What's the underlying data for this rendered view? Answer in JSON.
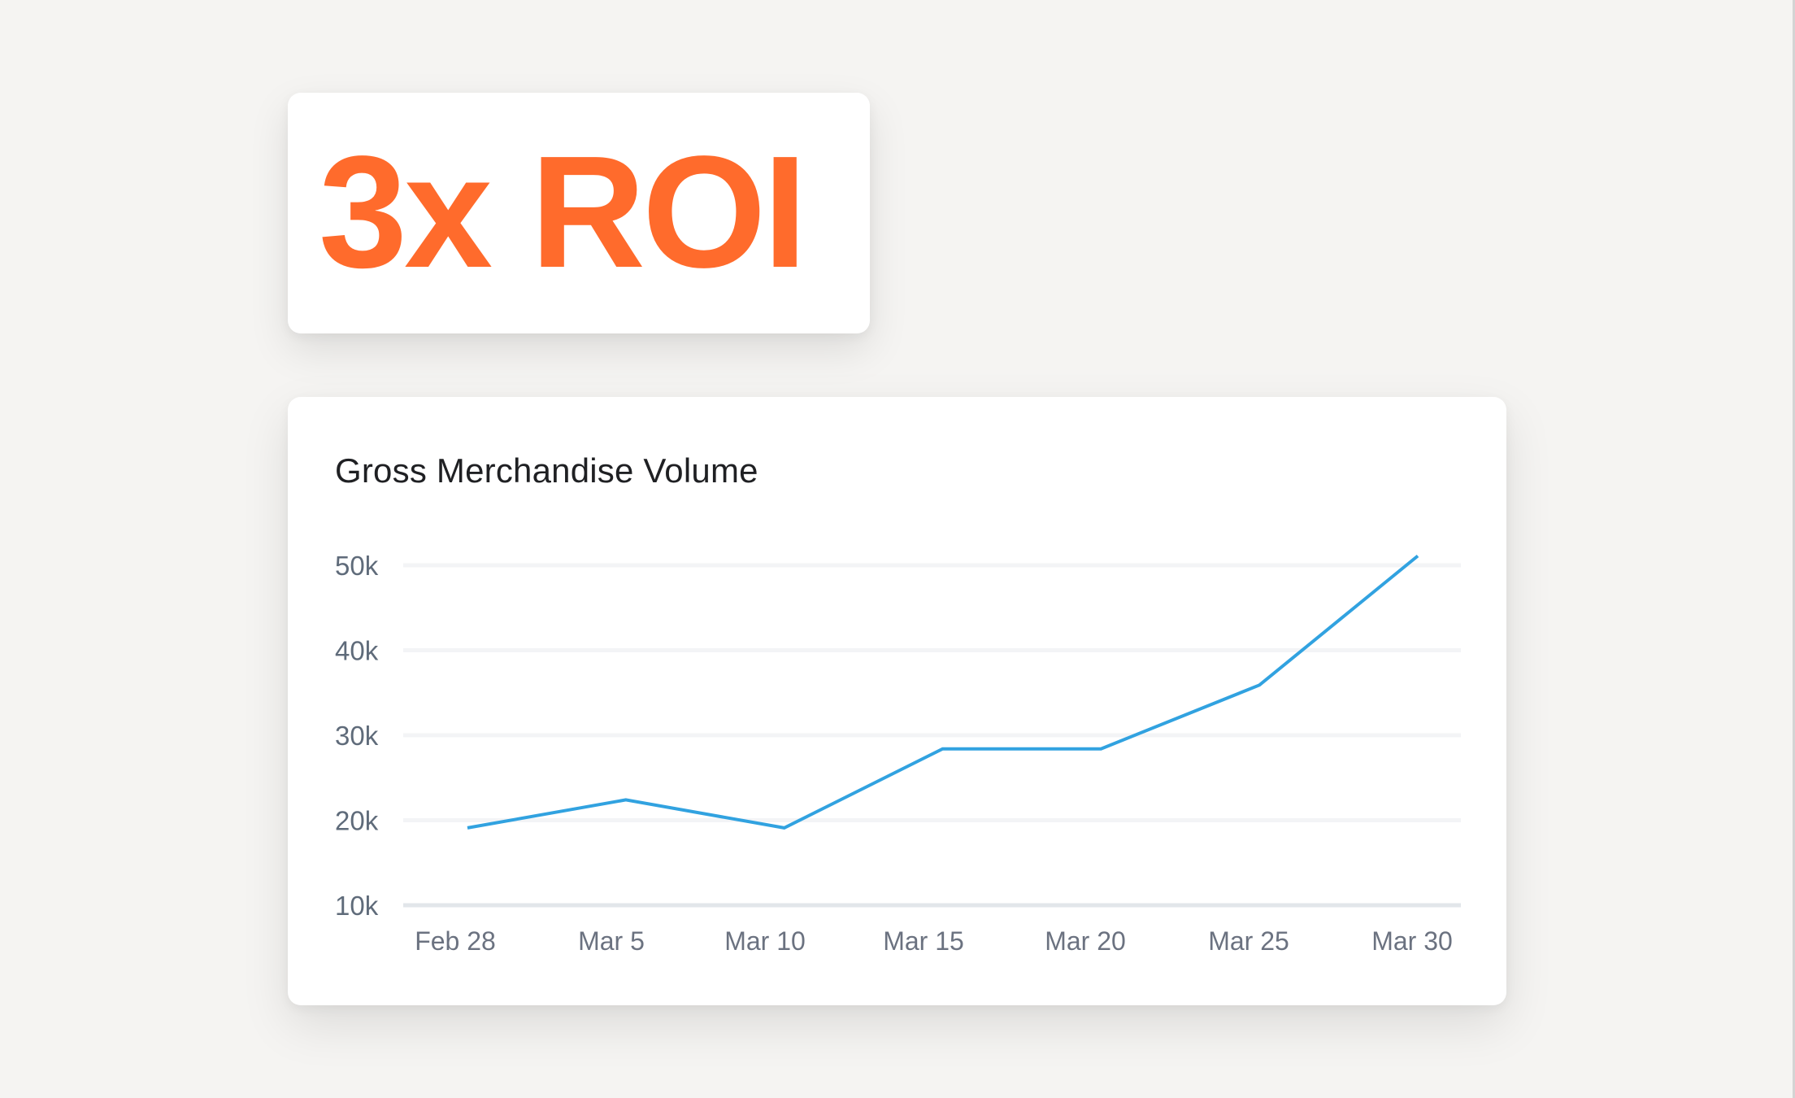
{
  "roi_card": {
    "headline": "3x ROI",
    "color": "#ff6b2c"
  },
  "chart_card": {
    "title": "Gross Merchandise Volume"
  },
  "colors": {
    "background": "#f5f4f2",
    "card": "#ffffff",
    "line": "#31a2e0",
    "gridline": "#f3f4f6",
    "baseline": "#e2e6ea",
    "axis_text": "#6b7280"
  },
  "chart_data": {
    "type": "line",
    "title": "Gross Merchandise Volume",
    "xlabel": "",
    "ylabel": "",
    "categories": [
      "Feb 28",
      "Mar 5",
      "Mar 10",
      "Mar 15",
      "Mar 20",
      "Mar 25",
      "Mar 30"
    ],
    "series": [
      {
        "name": "Gross Merchandise Volume",
        "values": [
          19100,
          22400,
          19100,
          28400,
          28400,
          35900,
          51100
        ]
      }
    ],
    "y_ticks": [
      "10k",
      "20k",
      "30k",
      "40k",
      "50k"
    ],
    "y_tick_values": [
      10000,
      20000,
      30000,
      40000,
      50000
    ],
    "ylim": [
      10000,
      50000
    ],
    "grid": true,
    "legend": "none"
  }
}
